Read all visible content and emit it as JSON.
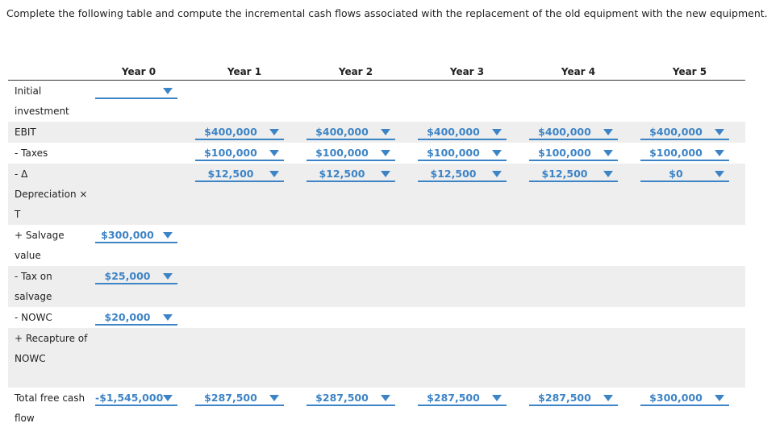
{
  "instruction": "Complete the following table and compute the incremental cash flows associated with the replacement of the old equipment with the new equipment.",
  "table": {
    "columns": [
      "Year 0",
      "Year 1",
      "Year 2",
      "Year 3",
      "Year 4",
      "Year 5"
    ],
    "rows": [
      {
        "label": "Initial investment",
        "cells": [
          {
            "selected": null
          },
          null,
          null,
          null,
          null,
          null
        ]
      },
      {
        "label": "EBIT",
        "cells": [
          null,
          {
            "selected": "$400,000"
          },
          {
            "selected": "$400,000"
          },
          {
            "selected": "$400,000"
          },
          {
            "selected": "$400,000"
          },
          {
            "selected": "$400,000"
          }
        ]
      },
      {
        "label": "- Taxes",
        "cells": [
          null,
          {
            "selected": "$100,000"
          },
          {
            "selected": "$100,000"
          },
          {
            "selected": "$100,000"
          },
          {
            "selected": "$100,000"
          },
          {
            "selected": "$100,000"
          }
        ]
      },
      {
        "label": "- Δ Depreciation × T",
        "cells": [
          null,
          {
            "selected": "$12,500"
          },
          {
            "selected": "$12,500"
          },
          {
            "selected": "$12,500"
          },
          {
            "selected": "$12,500"
          },
          {
            "selected": "$0"
          }
        ]
      },
      {
        "label": "+ Salvage value",
        "cells": [
          {
            "selected": "$300,000"
          },
          null,
          null,
          null,
          null,
          null
        ]
      },
      {
        "label": "- Tax on salvage",
        "cells": [
          {
            "selected": "$25,000"
          },
          null,
          null,
          null,
          null,
          null
        ]
      },
      {
        "label": "- NOWC",
        "cells": [
          {
            "selected": "$20,000"
          },
          null,
          null,
          null,
          null,
          null
        ]
      },
      {
        "label": "+ Recapture of NOWC",
        "cells": [
          null,
          null,
          null,
          null,
          null,
          null
        ]
      },
      {
        "label": "Total free cash flow",
        "cells": [
          {
            "selected": "-$1,545,000"
          },
          {
            "selected": "$287,500"
          },
          {
            "selected": "$287,500"
          },
          {
            "selected": "$287,500"
          },
          {
            "selected": "$287,500"
          },
          {
            "selected": "$300,000"
          }
        ]
      }
    ]
  }
}
